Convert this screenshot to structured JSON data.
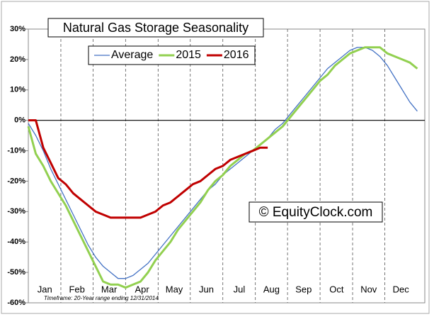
{
  "chart_data": {
    "type": "line",
    "title": "Natural Gas Storage Seasonality",
    "watermark": "© EquityClock.com",
    "footnote": "Timeframe: 20-Year range ending 12/31/2014",
    "x": [
      0,
      1,
      2,
      3,
      4,
      5,
      6,
      7,
      8,
      9,
      10,
      11,
      12,
      13,
      14,
      15,
      16,
      17,
      18,
      19,
      20,
      21,
      22,
      23,
      24,
      25,
      26,
      27,
      28,
      29,
      30,
      31,
      32,
      33,
      34,
      35,
      36,
      37,
      38,
      39,
      40,
      41,
      42,
      43,
      44,
      45,
      46,
      47,
      48,
      49,
      50,
      51,
      52
    ],
    "xlim": [
      0,
      53
    ],
    "xticks": [
      {
        "value": 2.2,
        "label": "Jan"
      },
      {
        "value": 6.5,
        "label": "Feb"
      },
      {
        "value": 10.8,
        "label": "Mar"
      },
      {
        "value": 15.2,
        "label": "Apr"
      },
      {
        "value": 19.5,
        "label": "May"
      },
      {
        "value": 23.8,
        "label": "Jun"
      },
      {
        "value": 28.2,
        "label": "Jul"
      },
      {
        "value": 32.5,
        "label": "Aug"
      },
      {
        "value": 36.8,
        "label": "Sep"
      },
      {
        "value": 41.2,
        "label": "Oct"
      },
      {
        "value": 45.5,
        "label": "Nov"
      },
      {
        "value": 49.8,
        "label": "Dec"
      }
    ],
    "ylim": [
      -60,
      30
    ],
    "yticks": [
      {
        "value": -60,
        "label": "-60%"
      },
      {
        "value": -50,
        "label": "-50%"
      },
      {
        "value": -40,
        "label": "-40%"
      },
      {
        "value": -30,
        "label": "-30%"
      },
      {
        "value": -20,
        "label": "-20%"
      },
      {
        "value": -10,
        "label": "-10%"
      },
      {
        "value": 0,
        "label": "0%"
      },
      {
        "value": 10,
        "label": "10%"
      },
      {
        "value": 20,
        "label": "20%"
      },
      {
        "value": 30,
        "label": "30%"
      }
    ],
    "series": [
      {
        "name": "Average",
        "color": "#4472c4",
        "values": [
          -1,
          -5,
          -10,
          -16,
          -21,
          -26,
          -31,
          -36,
          -41,
          -45,
          -48,
          -50,
          -52,
          -52,
          -51,
          -49,
          -47,
          -44,
          -41,
          -38,
          -35,
          -32,
          -29,
          -26,
          -23,
          -21,
          -18,
          -16,
          -14,
          -12,
          -10,
          -8,
          -6,
          -3,
          -1,
          2,
          5,
          8,
          11,
          14,
          17,
          19,
          21,
          23,
          24,
          24,
          23,
          21,
          18,
          14,
          10,
          6,
          3
        ]
      },
      {
        "name": "2015",
        "color": "#92d050",
        "values": [
          -2,
          -11,
          -15,
          -20,
          -24,
          -28,
          -33,
          -38,
          -43,
          -48,
          -53,
          -54,
          -54,
          -55,
          -54,
          -53,
          -50,
          -46,
          -43,
          -40,
          -36,
          -33,
          -30,
          -27,
          -23,
          -20,
          -18,
          -15,
          -13,
          -11,
          -10,
          -8,
          -6,
          -4,
          -2,
          1,
          4,
          7,
          10,
          13,
          15,
          18,
          20,
          22,
          23,
          24,
          24,
          24,
          22,
          21,
          20,
          19,
          17
        ]
      },
      {
        "name": "2016",
        "color": "#c00000",
        "values": [
          0,
          0,
          -9,
          -14,
          -19,
          -21,
          -24,
          -26,
          -28,
          -30,
          -31,
          -32,
          -32,
          -32,
          -32,
          -32,
          -31,
          -30,
          -28,
          -27,
          -25,
          -23,
          -21,
          -20,
          -18,
          -16,
          -15,
          -13,
          -12,
          -11,
          -10,
          -9,
          -9,
          null,
          null,
          null,
          null,
          null,
          null,
          null,
          null,
          null,
          null,
          null,
          null,
          null,
          null,
          null,
          null,
          null,
          null,
          null,
          null
        ]
      }
    ]
  }
}
